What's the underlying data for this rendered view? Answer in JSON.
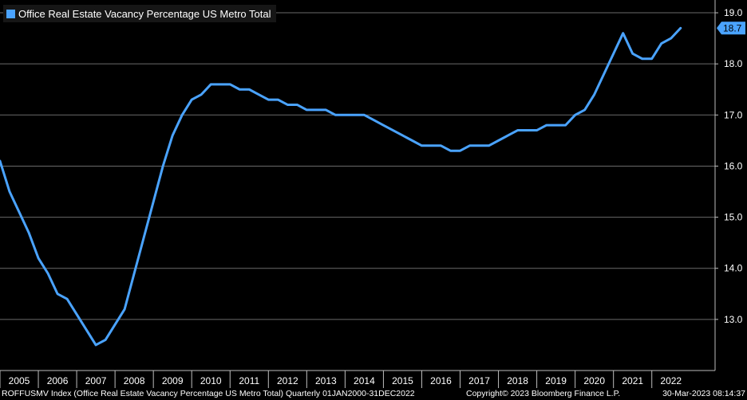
{
  "colors": {
    "background": "#000000",
    "series": "#4aa3ff",
    "grid": "#6a6a6a",
    "text": "#ffffff"
  },
  "legend": {
    "label": "Office Real Estate Vacancy Percentage US Metro Total"
  },
  "footer": {
    "source": "ROFFUSMV Index (Office Real Estate Vacancy Percentage US Metro Total)  Quarterly 01JAN2000-31DEC2022",
    "copyright": "Copyright© 2023 Bloomberg Finance L.P.",
    "timestamp": "30-Mar-2023 08:14:37"
  },
  "chart_data": {
    "type": "line",
    "title": "",
    "xlabel": "",
    "ylabel": "",
    "ylim": [
      12.0,
      19.25
    ],
    "xlim": [
      2005.0,
      2023.65
    ],
    "y_ticks": [
      "13.0",
      "14.0",
      "15.0",
      "16.0",
      "17.0",
      "18.0",
      "19.0"
    ],
    "x_ticks": [
      "2005",
      "2006",
      "2007",
      "2008",
      "2009",
      "2010",
      "2011",
      "2012",
      "2013",
      "2014",
      "2015",
      "2016",
      "2017",
      "2018",
      "2019",
      "2020",
      "2021",
      "2022"
    ],
    "grid": "horizontal",
    "legend_position": "top-left",
    "last_value_label": "18.7",
    "series": [
      {
        "name": "Office Real Estate Vacancy Percentage US Metro Total",
        "x": [
          2005.0,
          2005.25,
          2005.5,
          2005.75,
          2006.0,
          2006.25,
          2006.5,
          2006.75,
          2007.0,
          2007.25,
          2007.5,
          2007.75,
          2008.0,
          2008.25,
          2008.5,
          2008.75,
          2009.0,
          2009.25,
          2009.5,
          2009.75,
          2010.0,
          2010.25,
          2010.5,
          2010.75,
          2011.0,
          2011.25,
          2011.5,
          2011.75,
          2012.0,
          2012.25,
          2012.5,
          2012.75,
          2013.0,
          2013.25,
          2013.5,
          2013.75,
          2014.0,
          2014.25,
          2014.5,
          2014.75,
          2015.0,
          2015.25,
          2015.5,
          2015.75,
          2016.0,
          2016.25,
          2016.5,
          2016.75,
          2017.0,
          2017.25,
          2017.5,
          2017.75,
          2018.0,
          2018.25,
          2018.5,
          2018.75,
          2019.0,
          2019.25,
          2019.5,
          2019.75,
          2020.0,
          2020.25,
          2020.5,
          2020.75,
          2021.0,
          2021.25,
          2021.5,
          2021.75,
          2022.0,
          2022.25,
          2022.5,
          2022.75
        ],
        "y": [
          16.1,
          15.5,
          15.1,
          14.7,
          14.2,
          13.9,
          13.5,
          13.4,
          13.1,
          12.8,
          12.5,
          12.6,
          12.9,
          13.2,
          13.9,
          14.6,
          15.3,
          16.0,
          16.6,
          17.0,
          17.3,
          17.4,
          17.6,
          17.6,
          17.6,
          17.5,
          17.5,
          17.4,
          17.3,
          17.3,
          17.2,
          17.2,
          17.1,
          17.1,
          17.1,
          17.0,
          17.0,
          17.0,
          17.0,
          16.9,
          16.8,
          16.7,
          16.6,
          16.5,
          16.4,
          16.4,
          16.4,
          16.3,
          16.3,
          16.4,
          16.4,
          16.4,
          16.5,
          16.6,
          16.7,
          16.7,
          16.7,
          16.8,
          16.8,
          16.8,
          17.0,
          17.1,
          17.4,
          17.8,
          18.2,
          18.6,
          18.2,
          18.1,
          18.1,
          18.4,
          18.5,
          18.7
        ]
      }
    ]
  }
}
